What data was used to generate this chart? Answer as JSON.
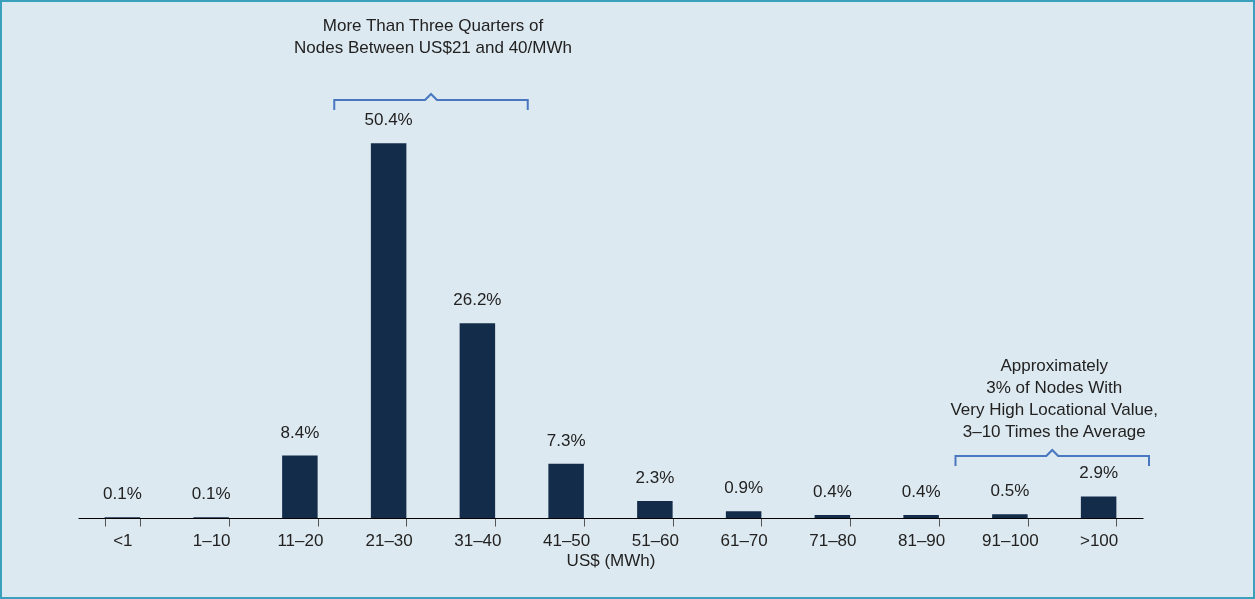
{
  "chart_data": {
    "type": "bar",
    "xlabel": "US$ (MWh)",
    "categories": [
      "<1",
      "1–10",
      "11–20",
      "21–30",
      "31–40",
      "41–50",
      "51–60",
      "61–70",
      "71–80",
      "81–90",
      "91–100",
      ">100"
    ],
    "values": [
      0.1,
      0.1,
      8.4,
      50.4,
      26.2,
      7.3,
      2.3,
      0.9,
      0.4,
      0.4,
      0.5,
      2.9
    ],
    "value_labels": [
      "0.1%",
      "0.1%",
      "8.4%",
      "50.4%",
      "26.2%",
      "7.3%",
      "2.3%",
      "0.9%",
      "0.4%",
      "0.4%",
      "0.5%",
      "2.9%"
    ],
    "color": "#132c4a",
    "grid": false,
    "annotations": [
      "More Than Three Quarters of\nNodes Between US$21 and 40/MWh",
      "Approximately\n3% of Nodes With\nVery High Locational Value,\n3–10 Times the Average"
    ]
  }
}
